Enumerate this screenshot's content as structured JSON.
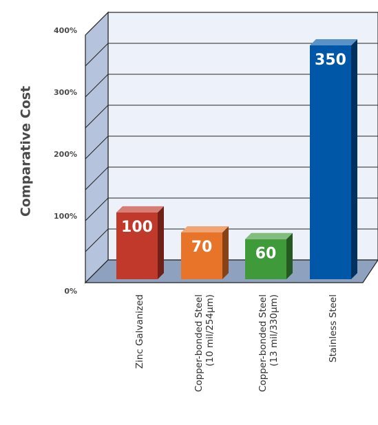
{
  "chart_data": {
    "type": "bar",
    "ylabel": "Comparative Cost",
    "ylim": [
      0,
      400
    ],
    "yticks": [
      "0%",
      "100%",
      "200%",
      "300%",
      "400%"
    ],
    "grid": true,
    "categories": [
      [
        "Zinc Galvanized"
      ],
      [
        "Copper-bonded Steel",
        "(10 mil/254µm)"
      ],
      [
        "Copper-bonded Steel",
        "(13 mil/330µm)"
      ],
      [
        "Stainless Steel"
      ]
    ],
    "values": [
      100,
      70,
      60,
      350
    ],
    "value_labels": [
      "100",
      "70",
      "60",
      "350"
    ],
    "colors": [
      "#c0392b",
      "#e8742a",
      "#3f9a3a",
      "#0057a8"
    ]
  }
}
